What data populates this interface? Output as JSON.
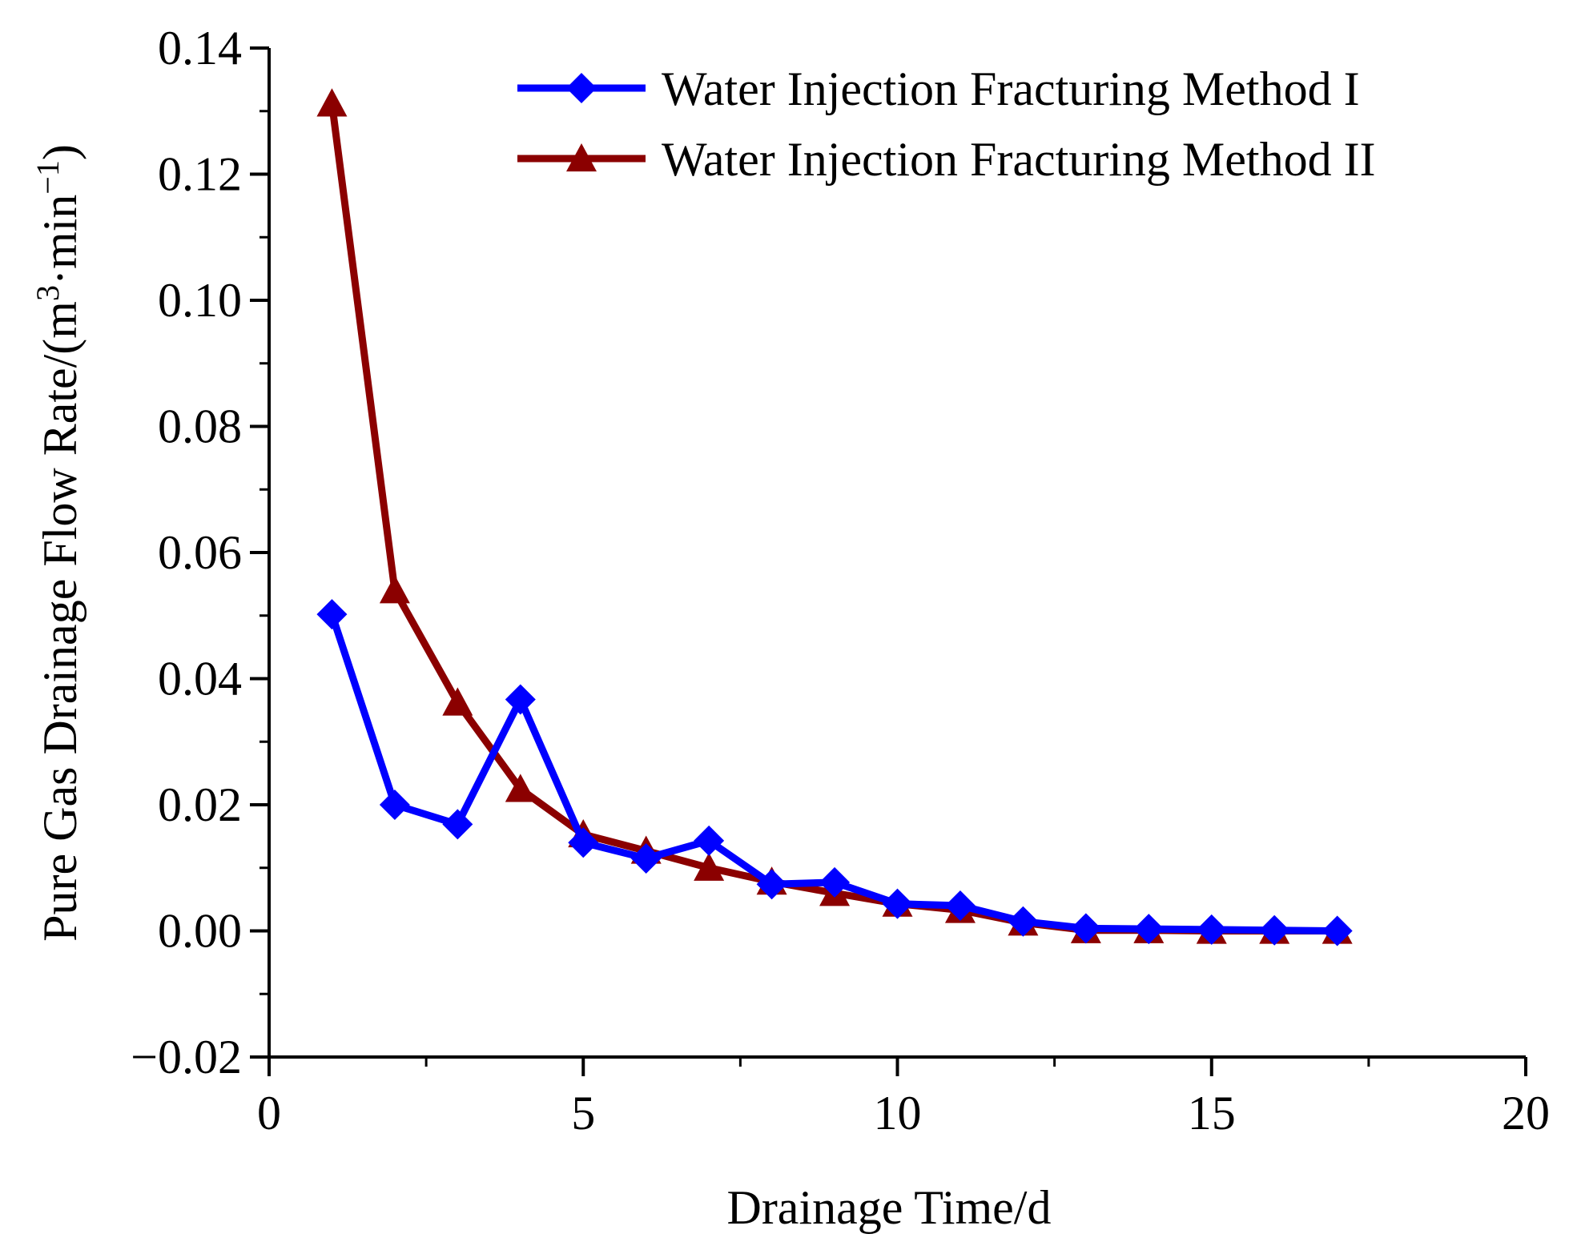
{
  "chart_data": {
    "type": "line",
    "title": "",
    "xlabel": "Drainage Time/d",
    "ylabel": "Pure Gas Drainage Flow Rate/(m³·min⁻¹)",
    "ylabel_parts": {
      "base": "Pure Gas Drainage Flow Rate/(m",
      "sup1": "3",
      "mid": "·min",
      "sup2": "−1",
      "end": ")"
    },
    "xlim": [
      0,
      20
    ],
    "ylim": [
      -0.02,
      0.14
    ],
    "xticks": [
      0,
      5,
      10,
      15,
      20
    ],
    "xtick_labels": [
      "0",
      "5",
      "10",
      "15",
      "20"
    ],
    "yticks": [
      -0.02,
      0.0,
      0.02,
      0.04,
      0.06,
      0.08,
      0.1,
      0.12,
      0.14
    ],
    "ytick_labels": [
      "−0.02",
      "0.00",
      "0.02",
      "0.04",
      "0.06",
      "0.08",
      "0.10",
      "0.12",
      "0.14"
    ],
    "grid": false,
    "legend_position": "top-right",
    "series": [
      {
        "name": "Water Injection Fracturing Method I",
        "color": "#0000ff",
        "marker": "diamond",
        "x": [
          1,
          2,
          3,
          4,
          5,
          6,
          7,
          8,
          9,
          10,
          11,
          12,
          13,
          14,
          15,
          16,
          17
        ],
        "values": [
          0.0502,
          0.02,
          0.0169,
          0.0367,
          0.014,
          0.0115,
          0.0143,
          0.0074,
          0.0077,
          0.0043,
          0.004,
          0.0015,
          0.0004,
          0.0003,
          0.0002,
          0.0001,
          0.0
        ]
      },
      {
        "name": "Water Injection Fracturing Method II",
        "color": "#8b0000",
        "marker": "triangle",
        "x": [
          1,
          2,
          3,
          4,
          5,
          6,
          7,
          8,
          9,
          10,
          11,
          12,
          13,
          14,
          15,
          16,
          17
        ],
        "values": [
          0.1312,
          0.054,
          0.0362,
          0.0225,
          0.0153,
          0.0127,
          0.01,
          0.0078,
          0.006,
          0.0043,
          0.0033,
          0.0013,
          0.0001,
          0.0001,
          0.0,
          0.0,
          0.0
        ]
      }
    ]
  }
}
